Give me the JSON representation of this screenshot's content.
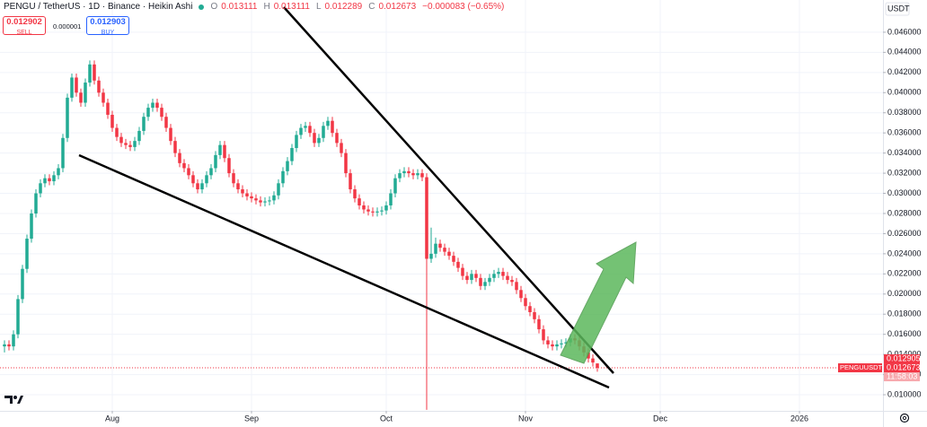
{
  "chart_data": {
    "type": "candlestick",
    "title": "PENGU / TetherUS · 1D · Binance · Heikin Ashi",
    "ohlc_labels": [
      "O",
      "H",
      "L",
      "C"
    ],
    "change": "−0.000083 (−0.65%)",
    "order_panel": {
      "sell_price": "0.012902",
      "sell_label": "SELL",
      "spread": "0.000001",
      "buy_price": "0.012903",
      "buy_label": "BUY"
    },
    "y_axis_label": "USDT",
    "up_color": "#22ab94",
    "down_color": "#f23645",
    "grid": true,
    "open": [
      0.0148,
      0.015,
      0.0148,
      0.016,
      0.0195,
      0.0225,
      0.0255,
      0.028,
      0.03,
      0.031,
      0.0315,
      0.0312,
      0.0318,
      0.0325,
      0.0355,
      0.0395,
      0.0415,
      0.04,
      0.039,
      0.041,
      0.0428,
      0.0412,
      0.04,
      0.039,
      0.0378,
      0.0365,
      0.0356,
      0.035,
      0.0348,
      0.0346,
      0.0352,
      0.0362,
      0.0376,
      0.0385,
      0.039,
      0.0385,
      0.0376,
      0.0365,
      0.0352,
      0.034,
      0.033,
      0.0325,
      0.0318,
      0.031,
      0.0304,
      0.031,
      0.0318,
      0.0325,
      0.0338,
      0.0348,
      0.0335,
      0.032,
      0.031,
      0.0304,
      0.03,
      0.0297,
      0.0295,
      0.0293,
      0.0291,
      0.0292,
      0.0293,
      0.0298,
      0.031,
      0.0322,
      0.0332,
      0.0345,
      0.0358,
      0.0365,
      0.0367,
      0.036,
      0.035,
      0.0355,
      0.0367,
      0.0372,
      0.036,
      0.035,
      0.034,
      0.032,
      0.0304,
      0.0295,
      0.0288,
      0.0284,
      0.0282,
      0.0281,
      0.0282,
      0.0283,
      0.0288,
      0.03,
      0.0315,
      0.032,
      0.0322,
      0.032,
      0.0318,
      0.032,
      0.0316,
      0.0235,
      0.024,
      0.025,
      0.0246,
      0.0242,
      0.0238,
      0.0232,
      0.0226,
      0.0218,
      0.0214,
      0.022,
      0.0216,
      0.0208,
      0.0212,
      0.0216,
      0.022,
      0.0222,
      0.0218,
      0.0214,
      0.0212,
      0.0204,
      0.0196,
      0.0188,
      0.0182,
      0.0175,
      0.0165,
      0.0154,
      0.015,
      0.0148,
      0.015,
      0.0151,
      0.0152,
      0.0156,
      0.0154,
      0.0148,
      0.0142,
      0.0136,
      0.013111
    ],
    "high": [
      0.0154,
      0.0154,
      0.0164,
      0.0199,
      0.0229,
      0.0259,
      0.0284,
      0.0304,
      0.0314,
      0.0319,
      0.0319,
      0.0322,
      0.0329,
      0.0359,
      0.0399,
      0.0419,
      0.0419,
      0.0404,
      0.0414,
      0.0432,
      0.0432,
      0.0416,
      0.0404,
      0.0394,
      0.0382,
      0.0369,
      0.036,
      0.0354,
      0.0352,
      0.0356,
      0.0366,
      0.038,
      0.0389,
      0.0394,
      0.0394,
      0.0389,
      0.038,
      0.0369,
      0.0356,
      0.0344,
      0.0334,
      0.0329,
      0.0322,
      0.0314,
      0.0314,
      0.0322,
      0.0329,
      0.0342,
      0.0352,
      0.0352,
      0.0339,
      0.0324,
      0.0314,
      0.0308,
      0.0304,
      0.0301,
      0.0299,
      0.0297,
      0.0296,
      0.0297,
      0.0302,
      0.0314,
      0.0326,
      0.0336,
      0.0349,
      0.0362,
      0.0369,
      0.0371,
      0.0371,
      0.0364,
      0.0359,
      0.0371,
      0.0376,
      0.0376,
      0.0364,
      0.0354,
      0.0344,
      0.0324,
      0.0308,
      0.0299,
      0.0292,
      0.0288,
      0.0286,
      0.0286,
      0.0287,
      0.0292,
      0.0304,
      0.0319,
      0.0324,
      0.0326,
      0.0326,
      0.0324,
      0.0324,
      0.0324,
      0.032,
      0.0266,
      0.0256,
      0.0254,
      0.025,
      0.0246,
      0.0242,
      0.0236,
      0.023,
      0.0222,
      0.0224,
      0.0224,
      0.022,
      0.0216,
      0.022,
      0.0224,
      0.0226,
      0.0226,
      0.0222,
      0.0218,
      0.0216,
      0.0208,
      0.02,
      0.0192,
      0.0186,
      0.0179,
      0.0169,
      0.0158,
      0.0154,
      0.0154,
      0.0155,
      0.0156,
      0.016,
      0.016,
      0.0158,
      0.0152,
      0.0146,
      0.014,
      0.013111
    ],
    "low": [
      0.0142,
      0.0144,
      0.0144,
      0.0156,
      0.0191,
      0.0221,
      0.0251,
      0.0276,
      0.0296,
      0.0306,
      0.0308,
      0.0308,
      0.0314,
      0.0321,
      0.0351,
      0.0391,
      0.0396,
      0.0386,
      0.0386,
      0.0406,
      0.0408,
      0.0396,
      0.0386,
      0.0374,
      0.0361,
      0.0352,
      0.0346,
      0.0344,
      0.0342,
      0.0342,
      0.0348,
      0.0358,
      0.0372,
      0.0381,
      0.0381,
      0.0372,
      0.0361,
      0.0348,
      0.0336,
      0.0326,
      0.0321,
      0.0314,
      0.0306,
      0.03,
      0.03,
      0.0306,
      0.0314,
      0.0321,
      0.0334,
      0.0331,
      0.0316,
      0.0306,
      0.03,
      0.0296,
      0.0293,
      0.0291,
      0.0289,
      0.0287,
      0.0287,
      0.0288,
      0.0289,
      0.0294,
      0.0306,
      0.0318,
      0.0328,
      0.0341,
      0.0354,
      0.0361,
      0.0356,
      0.0346,
      0.0346,
      0.0351,
      0.0363,
      0.0356,
      0.0346,
      0.0336,
      0.0316,
      0.03,
      0.0291,
      0.0284,
      0.028,
      0.0278,
      0.0277,
      0.0277,
      0.0278,
      0.0279,
      0.0284,
      0.0296,
      0.0311,
      0.0316,
      0.0316,
      0.0314,
      0.0314,
      0.0312,
      0.0085,
      0.0231,
      0.0236,
      0.0242,
      0.0238,
      0.0234,
      0.0228,
      0.0222,
      0.0214,
      0.021,
      0.021,
      0.0212,
      0.0204,
      0.0204,
      0.0208,
      0.0212,
      0.0216,
      0.0214,
      0.021,
      0.0208,
      0.02,
      0.0192,
      0.0184,
      0.0178,
      0.0171,
      0.0161,
      0.015,
      0.0146,
      0.0144,
      0.0144,
      0.0146,
      0.0147,
      0.0148,
      0.015,
      0.0144,
      0.0138,
      0.0132,
      0.0128,
      0.012289
    ],
    "close": [
      0.015,
      0.0148,
      0.016,
      0.0195,
      0.0225,
      0.0255,
      0.028,
      0.03,
      0.031,
      0.0315,
      0.0312,
      0.0318,
      0.0325,
      0.0355,
      0.0395,
      0.0415,
      0.04,
      0.039,
      0.041,
      0.0428,
      0.0412,
      0.04,
      0.039,
      0.0378,
      0.0365,
      0.0356,
      0.035,
      0.0348,
      0.0346,
      0.0352,
      0.0362,
      0.0376,
      0.0385,
      0.039,
      0.0385,
      0.0376,
      0.0365,
      0.0352,
      0.034,
      0.033,
      0.0325,
      0.0318,
      0.031,
      0.0304,
      0.031,
      0.0318,
      0.0325,
      0.0338,
      0.0348,
      0.0335,
      0.032,
      0.031,
      0.0304,
      0.03,
      0.0297,
      0.0295,
      0.0293,
      0.0291,
      0.0292,
      0.0293,
      0.0298,
      0.031,
      0.0322,
      0.0332,
      0.0345,
      0.0358,
      0.0365,
      0.0367,
      0.036,
      0.035,
      0.0355,
      0.0367,
      0.0372,
      0.036,
      0.035,
      0.034,
      0.032,
      0.0304,
      0.0295,
      0.0288,
      0.0284,
      0.0282,
      0.0281,
      0.0282,
      0.0283,
      0.0288,
      0.03,
      0.0315,
      0.032,
      0.0322,
      0.032,
      0.0318,
      0.032,
      0.0316,
      0.0235,
      0.024,
      0.025,
      0.0246,
      0.0242,
      0.0238,
      0.0232,
      0.0226,
      0.0218,
      0.0214,
      0.022,
      0.0216,
      0.0208,
      0.0212,
      0.0216,
      0.022,
      0.0222,
      0.0218,
      0.0214,
      0.0212,
      0.0204,
      0.0196,
      0.0188,
      0.0182,
      0.0175,
      0.0165,
      0.0154,
      0.015,
      0.0148,
      0.015,
      0.0151,
      0.0152,
      0.0156,
      0.0154,
      0.0148,
      0.0142,
      0.0136,
      0.0132,
      0.012673
    ],
    "ylim": [
      0.0084,
      0.0492
    ],
    "yticks": [
      {
        "value": 0.01,
        "label": "0.010000"
      },
      {
        "value": 0.012,
        "label": "0.012000"
      },
      {
        "value": 0.014,
        "label": "0.014000"
      },
      {
        "value": 0.016,
        "label": "0.016000"
      },
      {
        "value": 0.018,
        "label": "0.018000"
      },
      {
        "value": 0.02,
        "label": "0.020000"
      },
      {
        "value": 0.022,
        "label": "0.022000"
      },
      {
        "value": 0.024,
        "label": "0.024000"
      },
      {
        "value": 0.026,
        "label": "0.026000"
      },
      {
        "value": 0.028,
        "label": "0.028000"
      },
      {
        "value": 0.03,
        "label": "0.030000"
      },
      {
        "value": 0.032,
        "label": "0.032000"
      },
      {
        "value": 0.034,
        "label": "0.034000"
      },
      {
        "value": 0.036,
        "label": "0.036000"
      },
      {
        "value": 0.038,
        "label": "0.038000"
      },
      {
        "value": 0.04,
        "label": "0.040000"
      },
      {
        "value": 0.042,
        "label": "0.042000"
      },
      {
        "value": 0.044,
        "label": "0.044000"
      },
      {
        "value": 0.046,
        "label": "0.046000"
      }
    ],
    "xlim": [
      -1,
      195.6
    ],
    "xticks": [
      {
        "value": 24,
        "label": "Aug"
      },
      {
        "value": 55,
        "label": "Sep"
      },
      {
        "value": 85,
        "label": "Oct"
      },
      {
        "value": 116,
        "label": "Nov"
      },
      {
        "value": 146,
        "label": "Dec"
      },
      {
        "value": 177,
        "label": "2026"
      }
    ],
    "price_labels": {
      "symbol": "PENGUUSDT",
      "other_price": 0.012905,
      "countdown": "11:58:03"
    }
  }
}
